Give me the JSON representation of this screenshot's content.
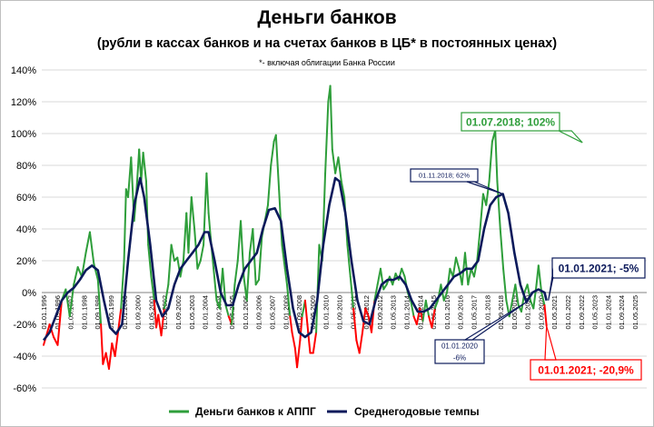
{
  "header": {
    "title": "Деньги банков",
    "subtitle": "(рубли в кассах банков и на счетах банков в ЦБ* в постоянных ценах)",
    "note": "*- включая облигации Банка России"
  },
  "chart_data": {
    "type": "line",
    "title": "Деньги банков",
    "subtitle": "(рубли в кассах банков и на счетах банков в ЦБ* в постоянных ценах)",
    "ylim": [
      -60,
      140
    ],
    "yticks": [
      "140%",
      "120%",
      "100%",
      "80%",
      "60%",
      "40%",
      "20%",
      "0%",
      "-20%",
      "-40%",
      "-60%"
    ],
    "yvalues": [
      140,
      120,
      100,
      80,
      60,
      40,
      20,
      0,
      -20,
      -40,
      -60
    ],
    "xlim": [
      1996,
      2025.8
    ],
    "xticks": [
      "01.01.1996",
      "01.09.1996",
      "01.05.1997",
      "01.01.1998",
      "01.09.1998",
      "01.05.1999",
      "01.01.2000",
      "01.09.2000",
      "01.05.2001",
      "01.01.2002",
      "01.09.2002",
      "01.05.2003",
      "01.01.2004",
      "01.09.2004",
      "01.05.2005",
      "01.01.2006",
      "01.09.2006",
      "01.05.2007",
      "01.01.2008",
      "01.09.2008",
      "01.05.2009",
      "01.01.2010",
      "01.09.2010",
      "01.05.2011",
      "01.01.2012",
      "01.09.2012",
      "01.05.2013",
      "01.01.2014",
      "01.09.2014",
      "01.05.2015",
      "01.01.2016",
      "01.09.2016",
      "01.05.2017",
      "01.01.2018",
      "01.09.2018",
      "01.05.2019",
      "01.01.2020",
      "01.09.2020",
      "01.05.2021",
      "01.01.2022",
      "01.09.2022",
      "01.05.2023",
      "01.01.2024",
      "01.09.2024",
      "01.05.2025"
    ],
    "series": [
      {
        "name": "Деньги банков к АППГ",
        "color": "#2e9e3a",
        "negative_color": "#ff0000",
        "points": [
          [
            1996,
            -33
          ],
          [
            1996.3,
            -20
          ],
          [
            1996.5,
            -28
          ],
          [
            1996.7,
            -33
          ],
          [
            1996.9,
            -5
          ],
          [
            1997.1,
            2
          ],
          [
            1997.3,
            -15
          ],
          [
            1997.5,
            5
          ],
          [
            1997.7,
            16
          ],
          [
            1997.9,
            10
          ],
          [
            1998.1,
            25
          ],
          [
            1998.3,
            38
          ],
          [
            1998.5,
            18
          ],
          [
            1998.7,
            8
          ],
          [
            1998.85,
            -20
          ],
          [
            1998.95,
            -45
          ],
          [
            1999.1,
            -38
          ],
          [
            1999.25,
            -48
          ],
          [
            1999.4,
            -32
          ],
          [
            1999.55,
            -40
          ],
          [
            1999.7,
            -25
          ],
          [
            1999.85,
            -10
          ],
          [
            2000,
            20
          ],
          [
            2000.1,
            65
          ],
          [
            2000.2,
            60
          ],
          [
            2000.35,
            85
          ],
          [
            2000.5,
            45
          ],
          [
            2000.6,
            60
          ],
          [
            2000.75,
            90
          ],
          [
            2000.85,
            70
          ],
          [
            2000.95,
            88
          ],
          [
            2001.1,
            70
          ],
          [
            2001.2,
            30
          ],
          [
            2001.35,
            10
          ],
          [
            2001.5,
            -5
          ],
          [
            2001.6,
            -22
          ],
          [
            2001.7,
            -14
          ],
          [
            2001.85,
            -27
          ],
          [
            2002,
            -10
          ],
          [
            2002.2,
            5
          ],
          [
            2002.35,
            30
          ],
          [
            2002.5,
            20
          ],
          [
            2002.65,
            22
          ],
          [
            2002.8,
            10
          ],
          [
            2002.95,
            20
          ],
          [
            2003.1,
            50
          ],
          [
            2003.2,
            25
          ],
          [
            2003.35,
            60
          ],
          [
            2003.5,
            40
          ],
          [
            2003.65,
            15
          ],
          [
            2003.8,
            20
          ],
          [
            2003.95,
            30
          ],
          [
            2004.1,
            75
          ],
          [
            2004.2,
            50
          ],
          [
            2004.3,
            35
          ],
          [
            2004.45,
            15
          ],
          [
            2004.6,
            -5
          ],
          [
            2004.75,
            -10
          ],
          [
            2004.9,
            15
          ],
          [
            2005.05,
            -8
          ],
          [
            2005.2,
            -15
          ],
          [
            2005.35,
            -20
          ],
          [
            2005.5,
            5
          ],
          [
            2005.65,
            20
          ],
          [
            2005.8,
            45
          ],
          [
            2005.95,
            10
          ],
          [
            2006.1,
            -5
          ],
          [
            2006.25,
            25
          ],
          [
            2006.4,
            40
          ],
          [
            2006.55,
            5
          ],
          [
            2006.7,
            8
          ],
          [
            2006.85,
            35
          ],
          [
            2007,
            45
          ],
          [
            2007.15,
            55
          ],
          [
            2007.3,
            80
          ],
          [
            2007.45,
            95
          ],
          [
            2007.55,
            99
          ],
          [
            2007.7,
            65
          ],
          [
            2007.85,
            30
          ],
          [
            2008,
            15
          ],
          [
            2008.1,
            5
          ],
          [
            2008.25,
            -15
          ],
          [
            2008.35,
            -25
          ],
          [
            2008.5,
            -35
          ],
          [
            2008.6,
            -47
          ],
          [
            2008.75,
            -30
          ],
          [
            2008.85,
            -15
          ],
          [
            2009,
            -5
          ],
          [
            2009.15,
            -25
          ],
          [
            2009.25,
            -38
          ],
          [
            2009.4,
            -38
          ],
          [
            2009.55,
            -25
          ],
          [
            2009.7,
            30
          ],
          [
            2009.85,
            20
          ],
          [
            2010,
            75
          ],
          [
            2010.15,
            120
          ],
          [
            2010.25,
            130
          ],
          [
            2010.35,
            90
          ],
          [
            2010.5,
            75
          ],
          [
            2010.65,
            85
          ],
          [
            2010.8,
            70
          ],
          [
            2010.95,
            60
          ],
          [
            2011.1,
            30
          ],
          [
            2011.25,
            10
          ],
          [
            2011.4,
            -10
          ],
          [
            2011.55,
            -30
          ],
          [
            2011.7,
            -38
          ],
          [
            2011.85,
            -25
          ],
          [
            2012,
            -10
          ],
          [
            2012.15,
            -15
          ],
          [
            2012.3,
            -25
          ],
          [
            2012.45,
            -5
          ],
          [
            2012.6,
            5
          ],
          [
            2012.75,
            15
          ],
          [
            2012.9,
            2
          ],
          [
            2013.05,
            5
          ],
          [
            2013.2,
            10
          ],
          [
            2013.35,
            5
          ],
          [
            2013.5,
            12
          ],
          [
            2013.65,
            8
          ],
          [
            2013.8,
            15
          ],
          [
            2013.95,
            10
          ],
          [
            2014.1,
            0
          ],
          [
            2014.25,
            -5
          ],
          [
            2014.4,
            -15
          ],
          [
            2014.55,
            -20
          ],
          [
            2014.7,
            -10
          ],
          [
            2014.85,
            -18
          ],
          [
            2015,
            -5
          ],
          [
            2015.15,
            -15
          ],
          [
            2015.3,
            -22
          ],
          [
            2015.45,
            -10
          ],
          [
            2015.6,
            -5
          ],
          [
            2015.75,
            5
          ],
          [
            2015.9,
            -5
          ],
          [
            2016.05,
            0
          ],
          [
            2016.2,
            15
          ],
          [
            2016.35,
            10
          ],
          [
            2016.5,
            22
          ],
          [
            2016.65,
            15
          ],
          [
            2016.8,
            5
          ],
          [
            2016.95,
            25
          ],
          [
            2017.1,
            5
          ],
          [
            2017.25,
            15
          ],
          [
            2017.4,
            10
          ],
          [
            2017.55,
            20
          ],
          [
            2017.7,
            40
          ],
          [
            2017.85,
            62
          ],
          [
            2018,
            55
          ],
          [
            2018.15,
            70
          ],
          [
            2018.3,
            95
          ],
          [
            2018.45,
            102
          ],
          [
            2018.55,
            70
          ],
          [
            2018.7,
            40
          ],
          [
            2018.85,
            15
          ],
          [
            2019,
            -5
          ],
          [
            2019.15,
            -15
          ],
          [
            2019.3,
            -5
          ],
          [
            2019.45,
            5
          ],
          [
            2019.6,
            -8
          ],
          [
            2019.75,
            -12
          ],
          [
            2019.9,
            0
          ],
          [
            2020.05,
            5
          ],
          [
            2020.2,
            -5
          ],
          [
            2020.35,
            -10
          ],
          [
            2020.5,
            5
          ],
          [
            2020.6,
            17
          ],
          [
            2020.75,
            0
          ],
          [
            2020.9,
            -8
          ],
          [
            2021,
            -21
          ]
        ]
      },
      {
        "name": "Среднегодовые темпы",
        "color": "#0c1a5b",
        "points": [
          [
            1996,
            -30
          ],
          [
            1996.3,
            -25
          ],
          [
            1996.6,
            -15
          ],
          [
            1996.9,
            -5
          ],
          [
            1997.2,
            0
          ],
          [
            1997.5,
            3
          ],
          [
            1997.8,
            8
          ],
          [
            1998.1,
            14
          ],
          [
            1998.4,
            17
          ],
          [
            1998.7,
            14
          ],
          [
            1999,
            -5
          ],
          [
            1999.3,
            -22
          ],
          [
            1999.6,
            -26
          ],
          [
            1999.9,
            -20
          ],
          [
            2000.2,
            20
          ],
          [
            2000.5,
            55
          ],
          [
            2000.8,
            72
          ],
          [
            2001,
            60
          ],
          [
            2001.3,
            30
          ],
          [
            2001.6,
            -5
          ],
          [
            2001.9,
            -15
          ],
          [
            2002.2,
            -10
          ],
          [
            2002.5,
            5
          ],
          [
            2002.8,
            15
          ],
          [
            2003.1,
            20
          ],
          [
            2003.4,
            25
          ],
          [
            2003.7,
            30
          ],
          [
            2004,
            38
          ],
          [
            2004.2,
            38
          ],
          [
            2004.5,
            20
          ],
          [
            2004.8,
            0
          ],
          [
            2005.1,
            -8
          ],
          [
            2005.4,
            -8
          ],
          [
            2005.7,
            5
          ],
          [
            2006,
            15
          ],
          [
            2006.3,
            20
          ],
          [
            2006.6,
            25
          ],
          [
            2006.9,
            40
          ],
          [
            2007.2,
            52
          ],
          [
            2007.5,
            53
          ],
          [
            2007.8,
            45
          ],
          [
            2008.1,
            15
          ],
          [
            2008.4,
            -10
          ],
          [
            2008.7,
            -25
          ],
          [
            2009,
            -28
          ],
          [
            2009.3,
            -25
          ],
          [
            2009.6,
            -5
          ],
          [
            2009.9,
            30
          ],
          [
            2010.2,
            55
          ],
          [
            2010.5,
            72
          ],
          [
            2010.7,
            70
          ],
          [
            2011,
            50
          ],
          [
            2011.3,
            20
          ],
          [
            2011.6,
            -5
          ],
          [
            2011.9,
            -18
          ],
          [
            2012.2,
            -20
          ],
          [
            2012.5,
            -5
          ],
          [
            2012.8,
            5
          ],
          [
            2013.1,
            8
          ],
          [
            2013.4,
            8
          ],
          [
            2013.7,
            10
          ],
          [
            2014,
            5
          ],
          [
            2014.3,
            -5
          ],
          [
            2014.6,
            -12
          ],
          [
            2014.9,
            -12
          ],
          [
            2015.2,
            -10
          ],
          [
            2015.5,
            -5
          ],
          [
            2015.8,
            0
          ],
          [
            2016.1,
            5
          ],
          [
            2016.4,
            10
          ],
          [
            2016.7,
            12
          ],
          [
            2017,
            15
          ],
          [
            2017.3,
            15
          ],
          [
            2017.6,
            20
          ],
          [
            2017.9,
            40
          ],
          [
            2018.2,
            55
          ],
          [
            2018.5,
            60
          ],
          [
            2018.83,
            62
          ],
          [
            2019.1,
            50
          ],
          [
            2019.4,
            25
          ],
          [
            2019.7,
            5
          ],
          [
            2020,
            -6
          ],
          [
            2020.3,
            0
          ],
          [
            2020.6,
            2
          ],
          [
            2020.9,
            0
          ],
          [
            2021,
            -5
          ]
        ]
      }
    ],
    "annotations": [
      {
        "text": "01.07.2018; 102%",
        "color": "#2e9e3a"
      },
      {
        "text": "01.11.2018; 62%",
        "color": "#0c1a5b"
      },
      {
        "text": "01.01.2021; -5%",
        "color": "#0c1a5b"
      },
      {
        "text": "01.01.2020",
        "text2": "-6%",
        "color": "#0c1a5b"
      },
      {
        "text": "01.01.2021; -20,9%",
        "color": "#ff0000"
      }
    ],
    "legend": {
      "position": "bottom-center"
    },
    "grid": true
  }
}
